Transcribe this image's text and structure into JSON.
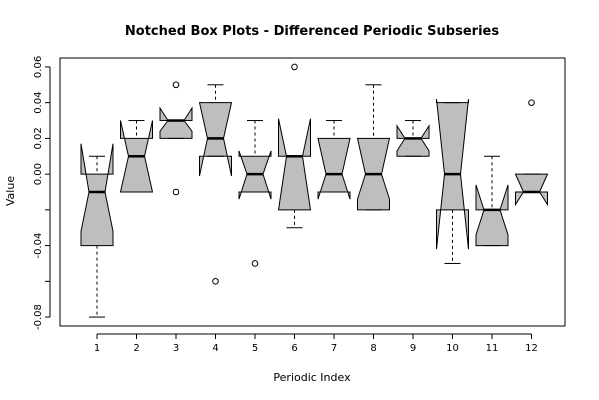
{
  "chart_data": {
    "type": "boxplot",
    "notched": true,
    "title": "Notched Box Plots - Differenced Periodic Subseries",
    "xlabel": "Periodic Index",
    "ylabel": "Value",
    "ylim": [
      -0.085,
      0.065
    ],
    "y_ticks": [
      -0.08,
      -0.04,
      0.0,
      0.02,
      0.04,
      0.06
    ],
    "y_tick_labels": [
      "-0.08",
      "-0.04",
      "0.00",
      "0.02",
      "0.04",
      "0.06"
    ],
    "categories": [
      "1",
      "2",
      "3",
      "4",
      "5",
      "6",
      "7",
      "8",
      "9",
      "10",
      "11",
      "12"
    ],
    "box_color": "#bebebe",
    "grid": false,
    "boxes": [
      {
        "category": "1",
        "whisker_low": -0.08,
        "q1": -0.04,
        "median": -0.01,
        "q3": 0.0,
        "whisker_high": 0.01,
        "notch_low": -0.032,
        "notch_high": 0.017,
        "outliers": []
      },
      {
        "category": "2",
        "whisker_low": -0.01,
        "q1": -0.01,
        "median": 0.01,
        "q3": 0.02,
        "whisker_high": 0.03,
        "notch_low": -0.01,
        "notch_high": 0.03,
        "outliers": []
      },
      {
        "category": "3",
        "whisker_low": 0.02,
        "q1": 0.02,
        "median": 0.03,
        "q3": 0.03,
        "whisker_high": 0.03,
        "notch_low": 0.024,
        "notch_high": 0.037,
        "outliers": [
          0.05,
          -0.01
        ]
      },
      {
        "category": "4",
        "whisker_low": 0.01,
        "q1": 0.01,
        "median": 0.02,
        "q3": 0.04,
        "whisker_high": 0.05,
        "notch_low": -0.001,
        "notch_high": 0.04,
        "outliers": [
          -0.06
        ]
      },
      {
        "category": "5",
        "whisker_low": -0.01,
        "q1": -0.01,
        "median": 0.0,
        "q3": 0.01,
        "whisker_high": 0.03,
        "notch_low": -0.014,
        "notch_high": 0.013,
        "outliers": [
          -0.05
        ]
      },
      {
        "category": "6",
        "whisker_low": -0.03,
        "q1": -0.02,
        "median": 0.01,
        "q3": 0.01,
        "whisker_high": 0.01,
        "notch_low": -0.02,
        "notch_high": 0.031,
        "outliers": [
          0.06
        ]
      },
      {
        "category": "7",
        "whisker_low": -0.01,
        "q1": -0.01,
        "median": 0.0,
        "q3": 0.02,
        "whisker_high": 0.03,
        "notch_low": -0.014,
        "notch_high": 0.02,
        "outliers": []
      },
      {
        "category": "8",
        "whisker_low": -0.02,
        "q1": -0.02,
        "median": 0.0,
        "q3": 0.02,
        "whisker_high": 0.05,
        "notch_low": -0.014,
        "notch_high": 0.02,
        "outliers": []
      },
      {
        "category": "9",
        "whisker_low": 0.01,
        "q1": 0.01,
        "median": 0.02,
        "q3": 0.02,
        "whisker_high": 0.03,
        "notch_low": 0.013,
        "notch_high": 0.027,
        "outliers": []
      },
      {
        "category": "10",
        "whisker_low": -0.05,
        "q1": -0.02,
        "median": 0.0,
        "q3": 0.04,
        "whisker_high": 0.04,
        "notch_low": -0.042,
        "notch_high": 0.042,
        "outliers": []
      },
      {
        "category": "11",
        "whisker_low": -0.04,
        "q1": -0.04,
        "median": -0.02,
        "q3": -0.02,
        "whisker_high": 0.01,
        "notch_low": -0.034,
        "notch_high": -0.006,
        "outliers": []
      },
      {
        "category": "12",
        "whisker_low": -0.01,
        "q1": -0.01,
        "median": -0.01,
        "q3": 0.0,
        "whisker_high": 0.0,
        "notch_low": -0.017,
        "notch_high": 0.0,
        "outliers": [
          0.04
        ]
      }
    ]
  }
}
